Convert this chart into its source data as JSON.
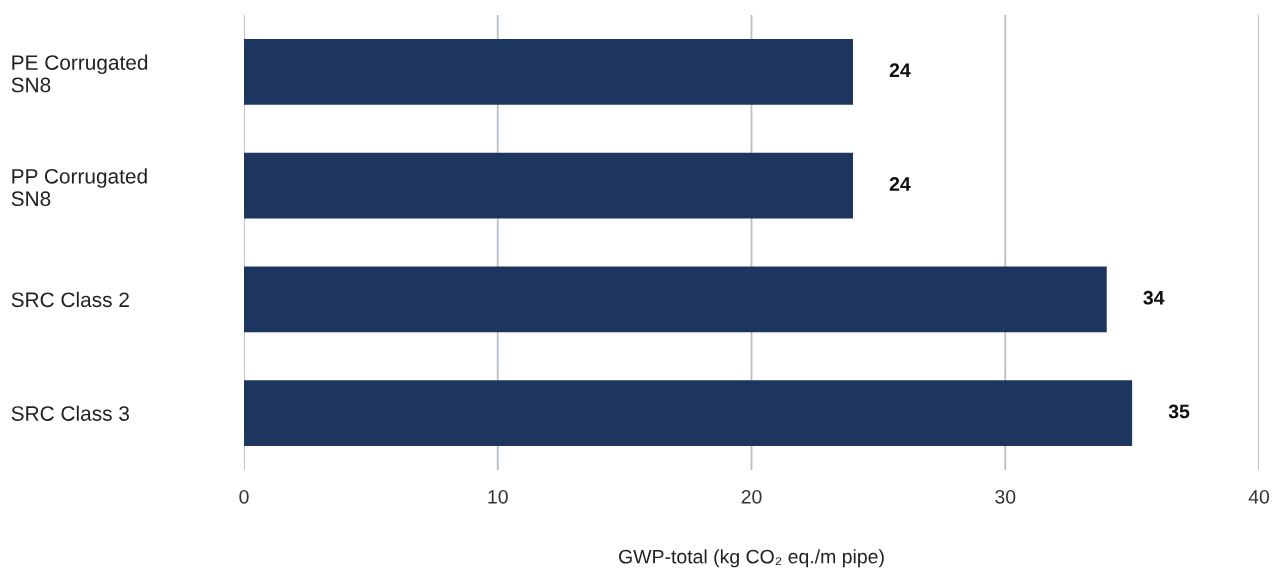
{
  "chart_data": {
    "type": "bar",
    "orientation": "horizontal",
    "xlabel": "GWP-total (kg CO₂ eq./m pipe)",
    "categories": [
      "PE Corrugated\nSN8",
      "PP Corrugated\nSN8",
      "SRC Class 2",
      "SRC Class 3"
    ],
    "values": [
      24,
      24,
      34,
      35
    ],
    "color": "#1d3660",
    "xlim": [
      0,
      40
    ],
    "xticks": [
      0,
      10,
      20,
      30,
      40
    ],
    "grid": "x",
    "data_labels": true
  }
}
